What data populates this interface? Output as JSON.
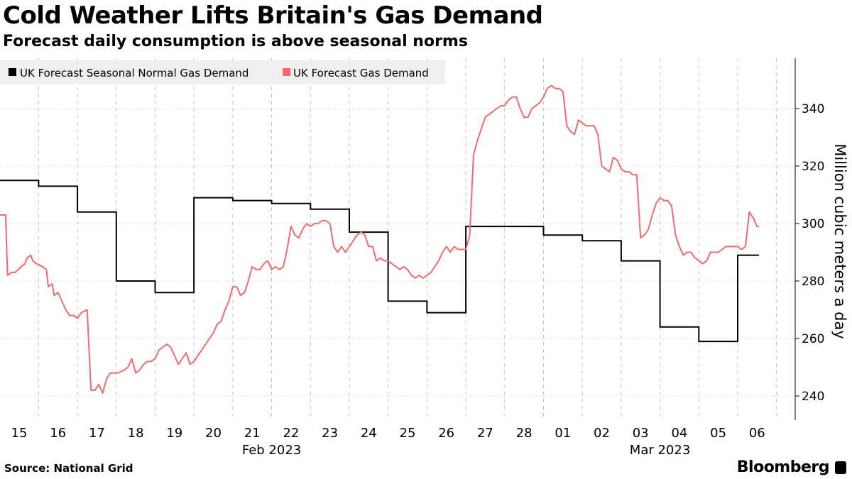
{
  "header": {
    "title": "Cold Weather Lifts Britain's Gas Demand",
    "subtitle": "Forecast daily consumption is above seasonal norms"
  },
  "footer": {
    "source": "Source: National Grid",
    "brand": "Bloomberg"
  },
  "chart_data": {
    "type": "line",
    "title": "Cold Weather Lifts Britain's Gas Demand",
    "subtitle": "Forecast daily consumption is above seasonal norms",
    "xlabel": "",
    "ylabel": "Million cubic meters a day",
    "ylim": [
      235,
      357
    ],
    "yticks": [
      240,
      260,
      280,
      300,
      320,
      340
    ],
    "x_tick_labels": [
      "15",
      "16",
      "17",
      "18",
      "19",
      "20",
      "21",
      "22",
      "23",
      "24",
      "25",
      "26",
      "27",
      "28",
      "01",
      "02",
      "03",
      "04",
      "05",
      "06"
    ],
    "month_labels": [
      {
        "label": "Feb 2023",
        "at_tick": 6.5
      },
      {
        "label": "Mar 2023",
        "at_tick": 16.5
      }
    ],
    "grid": "vertical dashed at day boundaries, horizontal dotted at y ticks",
    "legend": "top-left",
    "colors": {
      "normal": "#000000",
      "forecast": "#f06b6b",
      "legend_bg": "#efefef"
    },
    "series": [
      {
        "name": "UK Forecast Seasonal Normal Gas Demand",
        "color": "#000000",
        "points": [
          [
            -0.5,
            315
          ],
          [
            0.5,
            315
          ],
          [
            0.5,
            313
          ],
          [
            1.5,
            313
          ],
          [
            1.5,
            304
          ],
          [
            2.5,
            304
          ],
          [
            2.5,
            280
          ],
          [
            3.5,
            280
          ],
          [
            3.5,
            276
          ],
          [
            4.5,
            276
          ],
          [
            4.5,
            309
          ],
          [
            5.5,
            309
          ],
          [
            5.5,
            308
          ],
          [
            6.5,
            308
          ],
          [
            6.5,
            307
          ],
          [
            7.5,
            307
          ],
          [
            7.5,
            305
          ],
          [
            8.5,
            305
          ],
          [
            8.5,
            297
          ],
          [
            9.5,
            297
          ],
          [
            9.5,
            273
          ],
          [
            10.5,
            273
          ],
          [
            10.5,
            269
          ],
          [
            11.5,
            269
          ],
          [
            11.5,
            299
          ],
          [
            12.5,
            299
          ],
          [
            13.5,
            299
          ],
          [
            13.5,
            296
          ],
          [
            14.5,
            296
          ],
          [
            14.5,
            294
          ],
          [
            15.5,
            294
          ],
          [
            15.5,
            287
          ],
          [
            16.5,
            287
          ],
          [
            16.5,
            264
          ],
          [
            17.5,
            264
          ],
          [
            17.5,
            259
          ],
          [
            18.5,
            259
          ],
          [
            18.5,
            289
          ],
          [
            19.05,
            289
          ]
        ]
      },
      {
        "name": "UK Forecast Gas Demand",
        "color": "#f06b6b",
        "points": [
          [
            -0.5,
            303
          ],
          [
            -0.35,
            303
          ],
          [
            -0.3,
            282
          ],
          [
            -0.2,
            283
          ],
          [
            -0.1,
            283
          ],
          [
            0.05,
            285
          ],
          [
            0.15,
            286
          ],
          [
            0.2,
            288
          ],
          [
            0.3,
            289
          ],
          [
            0.35,
            287
          ],
          [
            0.45,
            286
          ],
          [
            0.6,
            285
          ],
          [
            0.7,
            284
          ],
          [
            0.75,
            278
          ],
          [
            0.85,
            279
          ],
          [
            0.9,
            275
          ],
          [
            1.0,
            276
          ],
          [
            1.1,
            273
          ],
          [
            1.2,
            270
          ],
          [
            1.3,
            268
          ],
          [
            1.4,
            268
          ],
          [
            1.5,
            267
          ],
          [
            1.6,
            269
          ],
          [
            1.75,
            270
          ],
          [
            1.85,
            242
          ],
          [
            1.95,
            242
          ],
          [
            2.05,
            244
          ],
          [
            2.15,
            241
          ],
          [
            2.25,
            246
          ],
          [
            2.35,
            248
          ],
          [
            2.45,
            248
          ],
          [
            2.55,
            248
          ],
          [
            2.7,
            249
          ],
          [
            2.8,
            250
          ],
          [
            2.9,
            253
          ],
          [
            3.0,
            248
          ],
          [
            3.1,
            249
          ],
          [
            3.2,
            251
          ],
          [
            3.3,
            252
          ],
          [
            3.4,
            252
          ],
          [
            3.5,
            253
          ],
          [
            3.6,
            256
          ],
          [
            3.7,
            257
          ],
          [
            3.8,
            258
          ],
          [
            3.9,
            257
          ],
          [
            4.0,
            254
          ],
          [
            4.1,
            251
          ],
          [
            4.2,
            253
          ],
          [
            4.3,
            255
          ],
          [
            4.4,
            251
          ],
          [
            4.5,
            252
          ],
          [
            4.6,
            254
          ],
          [
            4.7,
            256
          ],
          [
            4.8,
            258
          ],
          [
            4.9,
            260
          ],
          [
            5.0,
            262
          ],
          [
            5.1,
            265
          ],
          [
            5.2,
            266
          ],
          [
            5.3,
            270
          ],
          [
            5.4,
            273
          ],
          [
            5.5,
            278
          ],
          [
            5.6,
            278
          ],
          [
            5.7,
            275
          ],
          [
            5.8,
            276
          ],
          [
            5.9,
            280
          ],
          [
            6.0,
            285
          ],
          [
            6.1,
            284
          ],
          [
            6.2,
            284
          ],
          [
            6.3,
            286
          ],
          [
            6.4,
            287
          ],
          [
            6.5,
            284
          ],
          [
            6.6,
            285
          ],
          [
            6.7,
            284
          ],
          [
            6.8,
            285
          ],
          [
            6.9,
            291
          ],
          [
            7.0,
            299
          ],
          [
            7.1,
            296
          ],
          [
            7.2,
            295
          ],
          [
            7.3,
            298
          ],
          [
            7.4,
            300
          ],
          [
            7.5,
            299
          ],
          [
            7.6,
            300
          ],
          [
            7.7,
            300
          ],
          [
            7.8,
            301
          ],
          [
            7.9,
            301
          ],
          [
            8.0,
            300
          ],
          [
            8.1,
            292
          ],
          [
            8.2,
            290
          ],
          [
            8.3,
            292
          ],
          [
            8.4,
            290
          ],
          [
            8.5,
            292
          ],
          [
            8.6,
            294
          ],
          [
            8.7,
            296
          ],
          [
            8.8,
            297
          ],
          [
            8.9,
            296
          ],
          [
            9.0,
            292
          ],
          [
            9.1,
            292
          ],
          [
            9.2,
            287
          ],
          [
            9.3,
            288
          ],
          [
            9.4,
            287
          ],
          [
            9.5,
            287
          ],
          [
            9.6,
            286
          ],
          [
            9.7,
            285
          ],
          [
            9.8,
            284
          ],
          [
            9.9,
            285
          ],
          [
            10.0,
            284
          ],
          [
            10.1,
            282
          ],
          [
            10.2,
            281
          ],
          [
            10.3,
            282
          ],
          [
            10.4,
            281
          ],
          [
            10.5,
            282
          ],
          [
            10.6,
            283
          ],
          [
            10.7,
            285
          ],
          [
            10.8,
            287
          ],
          [
            10.9,
            290
          ],
          [
            11.0,
            292
          ],
          [
            11.1,
            290
          ],
          [
            11.2,
            292
          ],
          [
            11.3,
            291
          ],
          [
            11.4,
            291
          ],
          [
            11.5,
            291
          ],
          [
            11.6,
            296
          ],
          [
            11.7,
            324
          ],
          [
            11.8,
            329
          ],
          [
            11.9,
            333
          ],
          [
            12.0,
            337
          ],
          [
            12.1,
            338
          ],
          [
            12.2,
            339
          ],
          [
            12.3,
            340
          ],
          [
            12.4,
            341
          ],
          [
            12.5,
            341
          ],
          [
            12.6,
            343
          ],
          [
            12.7,
            344
          ],
          [
            12.8,
            344
          ],
          [
            12.9,
            340
          ],
          [
            13.0,
            337
          ],
          [
            13.1,
            337
          ],
          [
            13.2,
            340
          ],
          [
            13.3,
            341
          ],
          [
            13.4,
            342
          ],
          [
            13.5,
            344
          ],
          [
            13.6,
            347
          ],
          [
            13.7,
            348
          ],
          [
            13.8,
            347
          ],
          [
            13.9,
            347
          ],
          [
            14.0,
            346
          ],
          [
            14.1,
            334
          ],
          [
            14.2,
            332
          ],
          [
            14.3,
            331
          ],
          [
            14.4,
            336
          ],
          [
            14.5,
            335
          ],
          [
            14.6,
            334
          ],
          [
            14.7,
            334
          ],
          [
            14.8,
            334
          ],
          [
            14.9,
            331
          ],
          [
            15.0,
            320
          ],
          [
            15.1,
            319
          ],
          [
            15.2,
            318
          ],
          [
            15.3,
            323
          ],
          [
            15.4,
            322
          ],
          [
            15.5,
            319
          ],
          [
            15.6,
            318
          ],
          [
            15.7,
            318
          ],
          [
            15.8,
            317
          ],
          [
            15.9,
            317
          ],
          [
            16.0,
            295
          ],
          [
            16.1,
            296
          ],
          [
            16.2,
            298
          ],
          [
            16.3,
            303
          ],
          [
            16.4,
            307
          ],
          [
            16.5,
            309
          ],
          [
            16.6,
            308
          ],
          [
            16.7,
            308
          ],
          [
            16.8,
            306
          ],
          [
            16.9,
            296
          ],
          [
            17.0,
            292
          ],
          [
            17.1,
            289
          ],
          [
            17.2,
            290
          ],
          [
            17.3,
            290
          ],
          [
            17.4,
            288
          ],
          [
            17.5,
            287
          ],
          [
            17.6,
            286
          ],
          [
            17.7,
            287
          ],
          [
            17.8,
            290
          ],
          [
            17.9,
            290
          ],
          [
            18.0,
            290
          ],
          [
            18.1,
            291
          ],
          [
            18.2,
            292
          ],
          [
            18.3,
            292
          ],
          [
            18.4,
            292
          ],
          [
            18.5,
            292
          ],
          [
            18.6,
            291
          ],
          [
            18.7,
            292
          ],
          [
            18.75,
            298
          ],
          [
            18.8,
            304
          ],
          [
            18.9,
            302
          ],
          [
            19.0,
            299
          ],
          [
            19.05,
            299
          ]
        ]
      }
    ]
  }
}
